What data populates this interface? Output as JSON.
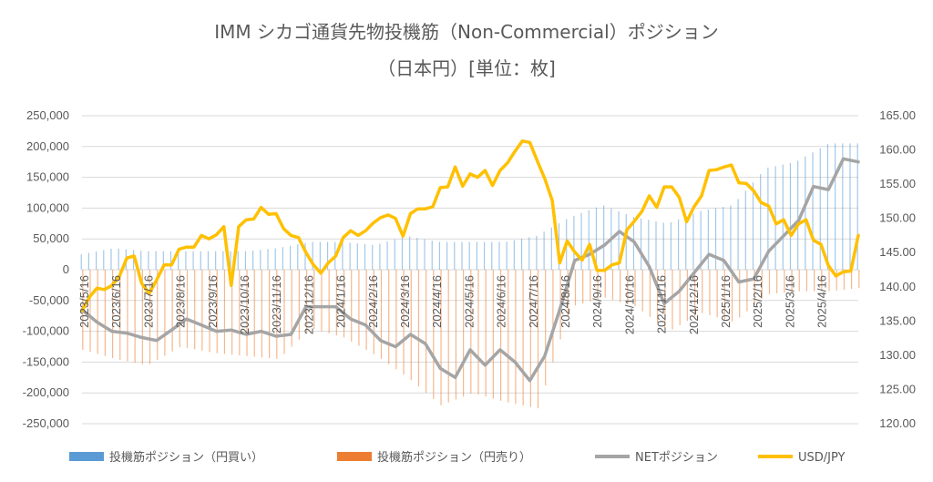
{
  "chart_data": {
    "type": "bar+line",
    "title_line1": "IMM シカゴ通貨先物投機筋（Non-Commercial）ポジション",
    "title_line2": "（日本円）[単位：枚]",
    "y_left": {
      "min": -250000,
      "max": 250000,
      "step": 50000,
      "tick_labels": [
        "-250,000",
        "-200,000",
        "-150,000",
        "-100,000",
        "-50,000",
        "0",
        "50,000",
        "100,000",
        "150,000",
        "200,000",
        "250,000"
      ]
    },
    "y_right": {
      "min": 120,
      "max": 165,
      "step": 5,
      "tick_labels": [
        "120.00",
        "125.00",
        "130.00",
        "135.00",
        "140.00",
        "145.00",
        "150.00",
        "155.00",
        "160.00",
        "165.00"
      ]
    },
    "x_tick_labels": [
      "2023/5/16",
      "2023/6/16",
      "2023/7/16",
      "2023/8/16",
      "2023/9/16",
      "2023/10/16",
      "2023/11/16",
      "2023/12/16",
      "2024/1/16",
      "2024/2/16",
      "2024/3/16",
      "2024/4/16",
      "2024/5/16",
      "2024/6/16",
      "2024/7/16",
      "2024/8/16",
      "2024/9/16",
      "2024/10/16",
      "2024/11/16",
      "2024/12/16",
      "2025/1/16",
      "2025/2/16",
      "2025/3/16",
      "2025/4/16"
    ],
    "x_range": {
      "start": "2023-05-16",
      "end": "2025-05-13"
    },
    "grid": true,
    "legend_position": "bottom",
    "colors": {
      "long": "#5b9bd5",
      "short": "#ed7d31",
      "net": "#a5a5a5",
      "usdjpy": "#ffc000",
      "grid": "#d9d9d9",
      "text": "#595959"
    },
    "series": [
      {
        "name": "投機筋ポジション（円買い）",
        "axis": "left",
        "kind": "bar",
        "points": [
          [
            "2023-05-16",
            25000
          ],
          [
            "2023-06-16",
            35000
          ],
          [
            "2023-07-16",
            30000
          ],
          [
            "2023-08-16",
            30000
          ],
          [
            "2023-09-16",
            30000
          ],
          [
            "2023-10-16",
            30000
          ],
          [
            "2023-11-16",
            35000
          ],
          [
            "2023-12-16",
            45000
          ],
          [
            "2024-01-16",
            45000
          ],
          [
            "2024-02-16",
            40000
          ],
          [
            "2024-03-16",
            55000
          ],
          [
            "2024-04-16",
            45000
          ],
          [
            "2024-05-16",
            45000
          ],
          [
            "2024-06-16",
            45000
          ],
          [
            "2024-07-16",
            55000
          ],
          [
            "2024-08-16",
            85000
          ],
          [
            "2024-09-16",
            105000
          ],
          [
            "2024-10-16",
            85000
          ],
          [
            "2024-11-16",
            75000
          ],
          [
            "2024-12-16",
            95000
          ],
          [
            "2025-01-16",
            105000
          ],
          [
            "2025-02-16",
            165000
          ],
          [
            "2025-03-16",
            175000
          ],
          [
            "2025-04-16",
            205000
          ],
          [
            "2025-05-13",
            205000
          ]
        ]
      },
      {
        "name": "投機筋ポジション（円売り）",
        "axis": "left",
        "kind": "bar",
        "points": [
          [
            "2023-05-16",
            -130000
          ],
          [
            "2023-06-16",
            -145000
          ],
          [
            "2023-07-16",
            -155000
          ],
          [
            "2023-08-16",
            -125000
          ],
          [
            "2023-09-16",
            -135000
          ],
          [
            "2023-10-16",
            -140000
          ],
          [
            "2023-11-16",
            -145000
          ],
          [
            "2023-12-16",
            -95000
          ],
          [
            "2024-01-16",
            -110000
          ],
          [
            "2024-02-16",
            -140000
          ],
          [
            "2024-03-16",
            -175000
          ],
          [
            "2024-04-16",
            -220000
          ],
          [
            "2024-05-16",
            -200000
          ],
          [
            "2024-06-16",
            -215000
          ],
          [
            "2024-07-16",
            -225000
          ],
          [
            "2024-08-16",
            -60000
          ],
          [
            "2024-09-16",
            -45000
          ],
          [
            "2024-10-16",
            -60000
          ],
          [
            "2024-11-16",
            -100000
          ],
          [
            "2024-12-16",
            -70000
          ],
          [
            "2025-01-16",
            -85000
          ],
          [
            "2025-02-16",
            -40000
          ],
          [
            "2025-03-16",
            -35000
          ],
          [
            "2025-04-16",
            -35000
          ],
          [
            "2025-05-13",
            -30000
          ]
        ]
      },
      {
        "name": "NETポジション",
        "axis": "left",
        "kind": "line",
        "points": [
          [
            "2023-05-16",
            -65000
          ],
          [
            "2023-05-30",
            -85000
          ],
          [
            "2023-06-13",
            -100000
          ],
          [
            "2023-06-27",
            -103000
          ],
          [
            "2023-07-11",
            -110000
          ],
          [
            "2023-07-25",
            -115000
          ],
          [
            "2023-08-08",
            -98000
          ],
          [
            "2023-08-22",
            -80000
          ],
          [
            "2023-09-05",
            -90000
          ],
          [
            "2023-09-19",
            -100000
          ],
          [
            "2023-10-03",
            -98000
          ],
          [
            "2023-10-17",
            -105000
          ],
          [
            "2023-10-31",
            -100000
          ],
          [
            "2023-11-14",
            -108000
          ],
          [
            "2023-11-28",
            -105000
          ],
          [
            "2023-12-12",
            -60000
          ],
          [
            "2023-12-26",
            -60000
          ],
          [
            "2024-01-09",
            -60000
          ],
          [
            "2024-01-23",
            -80000
          ],
          [
            "2024-02-06",
            -90000
          ],
          [
            "2024-02-20",
            -115000
          ],
          [
            "2024-03-05",
            -125000
          ],
          [
            "2024-03-19",
            -105000
          ],
          [
            "2024-04-02",
            -120000
          ],
          [
            "2024-04-16",
            -160000
          ],
          [
            "2024-04-30",
            -175000
          ],
          [
            "2024-05-14",
            -130000
          ],
          [
            "2024-05-28",
            -155000
          ],
          [
            "2024-06-11",
            -130000
          ],
          [
            "2024-06-25",
            -150000
          ],
          [
            "2024-07-09",
            -180000
          ],
          [
            "2024-07-23",
            -140000
          ],
          [
            "2024-08-06",
            -65000
          ],
          [
            "2024-08-20",
            15000
          ],
          [
            "2024-09-03",
            25000
          ],
          [
            "2024-09-17",
            40000
          ],
          [
            "2024-10-01",
            62000
          ],
          [
            "2024-10-15",
            45000
          ],
          [
            "2024-10-29",
            5000
          ],
          [
            "2024-11-12",
            -55000
          ],
          [
            "2024-11-26",
            -35000
          ],
          [
            "2024-12-10",
            -5000
          ],
          [
            "2024-12-24",
            25000
          ],
          [
            "2025-01-07",
            15000
          ],
          [
            "2025-01-21",
            -20000
          ],
          [
            "2025-02-04",
            -15000
          ],
          [
            "2025-02-18",
            30000
          ],
          [
            "2025-03-04",
            55000
          ],
          [
            "2025-03-18",
            80000
          ],
          [
            "2025-04-01",
            135000
          ],
          [
            "2025-04-15",
            130000
          ],
          [
            "2025-04-29",
            180000
          ],
          [
            "2025-05-13",
            175000
          ]
        ]
      },
      {
        "name": "USD/JPY",
        "axis": "right",
        "kind": "line",
        "points": [
          [
            "2023-05-16",
            136.5
          ],
          [
            "2023-05-23",
            138.5
          ],
          [
            "2023-05-30",
            139.8
          ],
          [
            "2023-06-06",
            139.6
          ],
          [
            "2023-06-13",
            140.2
          ],
          [
            "2023-06-20",
            141.5
          ],
          [
            "2023-06-27",
            144.2
          ],
          [
            "2023-07-04",
            144.5
          ],
          [
            "2023-07-11",
            140.5
          ],
          [
            "2023-07-18",
            139.0
          ],
          [
            "2023-07-25",
            141.0
          ],
          [
            "2023-08-01",
            143.2
          ],
          [
            "2023-08-08",
            143.2
          ],
          [
            "2023-08-15",
            145.5
          ],
          [
            "2023-08-22",
            145.8
          ],
          [
            "2023-08-29",
            145.8
          ],
          [
            "2023-09-05",
            147.5
          ],
          [
            "2023-09-12",
            147.0
          ],
          [
            "2023-09-19",
            147.6
          ],
          [
            "2023-09-26",
            148.8
          ],
          [
            "2023-10-03",
            140.2
          ],
          [
            "2023-10-10",
            148.8
          ],
          [
            "2023-10-17",
            149.8
          ],
          [
            "2023-10-24",
            149.9
          ],
          [
            "2023-10-31",
            151.6
          ],
          [
            "2023-11-07",
            150.6
          ],
          [
            "2023-11-14",
            150.7
          ],
          [
            "2023-11-21",
            148.5
          ],
          [
            "2023-11-28",
            147.5
          ],
          [
            "2023-12-05",
            147.2
          ],
          [
            "2023-12-12",
            145.0
          ],
          [
            "2023-12-19",
            143.2
          ],
          [
            "2023-12-26",
            142.0
          ],
          [
            "2024-01-02",
            143.5
          ],
          [
            "2024-01-09",
            144.5
          ],
          [
            "2024-01-16",
            147.2
          ],
          [
            "2024-01-23",
            148.2
          ],
          [
            "2024-01-30",
            147.5
          ],
          [
            "2024-02-06",
            148.2
          ],
          [
            "2024-02-13",
            149.3
          ],
          [
            "2024-02-20",
            150.1
          ],
          [
            "2024-02-27",
            150.5
          ],
          [
            "2024-03-05",
            150.0
          ],
          [
            "2024-03-12",
            147.4
          ],
          [
            "2024-03-19",
            150.7
          ],
          [
            "2024-03-26",
            151.4
          ],
          [
            "2024-04-02",
            151.4
          ],
          [
            "2024-04-09",
            151.7
          ],
          [
            "2024-04-16",
            154.5
          ],
          [
            "2024-04-23",
            154.6
          ],
          [
            "2024-04-30",
            157.5
          ],
          [
            "2024-05-07",
            154.7
          ],
          [
            "2024-05-14",
            156.5
          ],
          [
            "2024-05-21",
            156.0
          ],
          [
            "2024-05-28",
            157.0
          ],
          [
            "2024-06-04",
            154.8
          ],
          [
            "2024-06-11",
            157.0
          ],
          [
            "2024-06-18",
            158.1
          ],
          [
            "2024-06-25",
            159.8
          ],
          [
            "2024-07-02",
            161.3
          ],
          [
            "2024-07-09",
            161.1
          ],
          [
            "2024-07-16",
            158.4
          ],
          [
            "2024-07-23",
            155.8
          ],
          [
            "2024-07-30",
            152.6
          ],
          [
            "2024-08-06",
            143.5
          ],
          [
            "2024-08-13",
            146.7
          ],
          [
            "2024-08-20",
            145.1
          ],
          [
            "2024-08-27",
            143.9
          ],
          [
            "2024-09-03",
            146.2
          ],
          [
            "2024-09-10",
            142.4
          ],
          [
            "2024-09-17",
            142.4
          ],
          [
            "2024-09-24",
            143.2
          ],
          [
            "2024-10-01",
            143.5
          ],
          [
            "2024-10-08",
            148.3
          ],
          [
            "2024-10-15",
            149.6
          ],
          [
            "2024-10-22",
            151.0
          ],
          [
            "2024-10-29",
            153.3
          ],
          [
            "2024-11-05",
            151.6
          ],
          [
            "2024-11-12",
            154.6
          ],
          [
            "2024-11-19",
            154.6
          ],
          [
            "2024-11-26",
            153.1
          ],
          [
            "2024-12-03",
            149.5
          ],
          [
            "2024-12-10",
            151.7
          ],
          [
            "2024-12-17",
            153.3
          ],
          [
            "2024-12-24",
            157.0
          ],
          [
            "2024-12-31",
            157.1
          ],
          [
            "2025-01-07",
            157.5
          ],
          [
            "2025-01-14",
            157.8
          ],
          [
            "2025-01-21",
            155.2
          ],
          [
            "2025-01-28",
            155.1
          ],
          [
            "2025-02-04",
            154.0
          ],
          [
            "2025-02-11",
            152.3
          ],
          [
            "2025-02-18",
            151.8
          ],
          [
            "2025-02-25",
            149.2
          ],
          [
            "2025-03-04",
            149.8
          ],
          [
            "2025-03-11",
            147.5
          ],
          [
            "2025-03-18",
            149.2
          ],
          [
            "2025-03-25",
            149.8
          ],
          [
            "2025-04-01",
            146.8
          ],
          [
            "2025-04-08",
            146.2
          ],
          [
            "2025-04-15",
            143.1
          ],
          [
            "2025-04-22",
            141.6
          ],
          [
            "2025-04-29",
            142.2
          ],
          [
            "2025-05-06",
            142.3
          ],
          [
            "2025-05-13",
            147.5
          ]
        ]
      }
    ]
  }
}
